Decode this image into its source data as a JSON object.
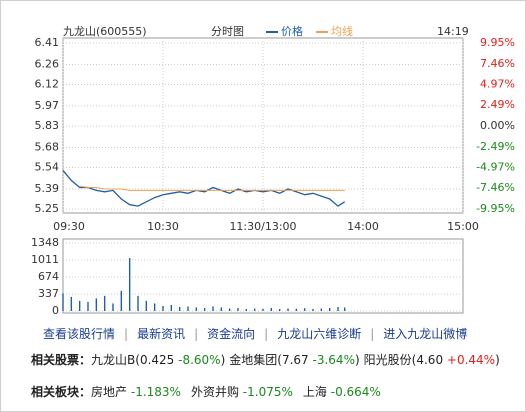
{
  "chart_data": [
    {
      "type": "line",
      "title": "九龙山(600555)",
      "subtitle": "分时图",
      "time": "14:19",
      "x": [
        0,
        5,
        10,
        15,
        20,
        25,
        30,
        35,
        40,
        45,
        50,
        55,
        60,
        65,
        70,
        75,
        80,
        85,
        90,
        95,
        100,
        105,
        110,
        115,
        120,
        125,
        130,
        135,
        140,
        145,
        150,
        155,
        160,
        165,
        169
      ],
      "series": [
        {
          "name": "价格",
          "color": "#1f5fa8",
          "values": [
            5.52,
            5.45,
            5.4,
            5.4,
            5.38,
            5.37,
            5.38,
            5.32,
            5.28,
            5.27,
            5.3,
            5.33,
            5.35,
            5.36,
            5.37,
            5.36,
            5.38,
            5.37,
            5.4,
            5.38,
            5.36,
            5.39,
            5.37,
            5.38,
            5.37,
            5.38,
            5.36,
            5.39,
            5.37,
            5.35,
            5.36,
            5.34,
            5.32,
            5.27,
            5.3
          ]
        },
        {
          "name": "均线",
          "color": "#f0a050",
          "values": [
            null,
            null,
            5.41,
            5.4,
            5.4,
            5.39,
            5.39,
            5.39,
            5.38,
            5.38,
            5.38,
            5.38,
            5.38,
            5.38,
            5.38,
            5.38,
            5.38,
            5.38,
            5.38,
            5.38,
            5.38,
            5.38,
            5.38,
            5.38,
            5.38,
            5.38,
            5.38,
            5.38,
            5.38,
            5.38,
            5.38,
            5.38,
            5.38,
            5.38,
            5.38
          ]
        }
      ],
      "xlim": [
        0,
        240
      ],
      "xticks": [
        {
          "value": 0,
          "label": "09:30"
        },
        {
          "value": 60,
          "label": "10:30"
        },
        {
          "value": 120,
          "label": "11:30/13:00"
        },
        {
          "value": 180,
          "label": "14:00"
        },
        {
          "value": 240,
          "label": "15:00"
        }
      ],
      "ylim": [
        5.25,
        6.41
      ],
      "yticks": [
        5.25,
        5.39,
        5.54,
        5.68,
        5.83,
        5.97,
        6.12,
        6.26,
        6.41
      ],
      "y2lim": [
        -9.95,
        9.95
      ],
      "y2ticks": [
        {
          "value": -9.95,
          "label": "-9.95%"
        },
        {
          "value": -7.46,
          "label": "-7.46%"
        },
        {
          "value": -4.97,
          "label": "-4.97%"
        },
        {
          "value": -2.49,
          "label": "-2.49%"
        },
        {
          "value": 0,
          "label": "0.00%"
        },
        {
          "value": 2.49,
          "label": "2.49%"
        },
        {
          "value": 4.97,
          "label": "4.97%"
        },
        {
          "value": 7.46,
          "label": "7.46%"
        },
        {
          "value": 9.95,
          "label": "9.95%"
        }
      ],
      "grid": true
    },
    {
      "type": "bar",
      "color": "#1f5fa8",
      "x": [
        0,
        5,
        10,
        15,
        20,
        25,
        30,
        35,
        40,
        45,
        50,
        55,
        60,
        65,
        70,
        75,
        80,
        85,
        90,
        95,
        100,
        105,
        110,
        115,
        120,
        125,
        130,
        135,
        140,
        145,
        150,
        155,
        160,
        165,
        169
      ],
      "values": [
        350,
        280,
        200,
        180,
        250,
        300,
        150,
        400,
        1050,
        300,
        200,
        150,
        100,
        120,
        80,
        90,
        70,
        60,
        90,
        70,
        50,
        60,
        40,
        50,
        45,
        60,
        40,
        50,
        45,
        55,
        40,
        50,
        60,
        80,
        70
      ],
      "xlim": [
        0,
        240
      ],
      "ylim": [
        0,
        1348
      ],
      "yticks": [
        0,
        337,
        674,
        1011,
        1348
      ],
      "grid": true
    }
  ],
  "links": [
    "查看该股行情",
    "最新资讯",
    "资金流向",
    "九龙山六维诊断",
    "进入九龙山微博"
  ],
  "related_stocks": {
    "label": "相关股票：",
    "items": [
      {
        "name": "九龙山B",
        "price": "0.425",
        "change": "-8.60%"
      },
      {
        "name": "金地集团",
        "price": "7.67",
        "change": "-3.64%"
      },
      {
        "name": "阳光股份",
        "price": "4.60",
        "change": "+0.44%"
      }
    ]
  },
  "related_sectors": {
    "label": "相关板块：",
    "items": [
      {
        "name": "房地产",
        "change": "-1.183%"
      },
      {
        "name": "外资并购",
        "change": "-1.075%"
      },
      {
        "name": "上海",
        "change": "-0.664%"
      }
    ]
  }
}
